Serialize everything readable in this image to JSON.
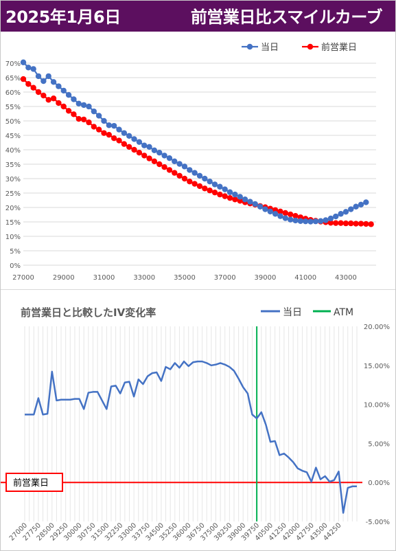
{
  "header": {
    "date": "2025年1月6日",
    "title": "前営業日比スマイルカーブ",
    "background": "#5c0f5f"
  },
  "chart_data": [
    {
      "type": "line",
      "title": "",
      "x_ticks": [
        "27000",
        "29000",
        "31000",
        "33000",
        "35000",
        "37000",
        "39000",
        "41000",
        "43000"
      ],
      "y_ticks": [
        "0%",
        "5%",
        "10%",
        "15%",
        "20%",
        "25%",
        "30%",
        "35%",
        "40%",
        "45%",
        "50%",
        "55%",
        "60%",
        "65%",
        "70%"
      ],
      "xlim": [
        27000,
        44500
      ],
      "ylim": [
        0,
        70
      ],
      "grid": true,
      "legend_position": "top-right",
      "series": [
        {
          "name": "当日",
          "color": "#4472c4",
          "x": [
            27000,
            27250,
            27500,
            27750,
            28000,
            28250,
            28500,
            28750,
            29000,
            29250,
            29500,
            29750,
            30000,
            30250,
            30500,
            30750,
            31000,
            31250,
            31500,
            31750,
            32000,
            32250,
            32500,
            32750,
            33000,
            33250,
            33500,
            33750,
            34000,
            34250,
            34500,
            34750,
            35000,
            35250,
            35500,
            35750,
            36000,
            36250,
            36500,
            36750,
            37000,
            37250,
            37500,
            37750,
            38000,
            38250,
            38500,
            38750,
            39000,
            39250,
            39500,
            39750,
            40000,
            40250,
            40500,
            40750,
            41000,
            41250,
            41500,
            41750,
            42000,
            42250,
            42500,
            42750,
            43000,
            43250,
            43500,
            43750,
            44000
          ],
          "values": [
            70.3,
            68.5,
            68.0,
            65.5,
            63.8,
            65.5,
            63.5,
            62.0,
            60.5,
            59.0,
            57.5,
            56.0,
            55.5,
            55.0,
            53.3,
            51.8,
            50.0,
            48.5,
            48.3,
            47.0,
            45.8,
            44.8,
            43.7,
            42.7,
            41.5,
            41.0,
            39.8,
            39.0,
            38.0,
            37.1,
            36.0,
            35.1,
            34.2,
            33.0,
            32.0,
            31.0,
            30.0,
            29.0,
            28.0,
            27.2,
            26.3,
            25.3,
            24.5,
            23.7,
            22.8,
            22.0,
            21.2,
            20.3,
            19.4,
            18.6,
            17.8,
            17.0,
            16.3,
            15.8,
            15.5,
            15.3,
            15.2,
            15.1,
            15.2,
            15.3,
            15.6,
            16.2,
            16.9,
            17.8,
            18.5,
            19.4,
            20.3,
            21.0,
            21.8
          ]
        },
        {
          "name": "前営業日",
          "color": "#ff0000",
          "x": [
            27000,
            27250,
            27500,
            27750,
            28000,
            28250,
            28500,
            28750,
            29000,
            29250,
            29500,
            29750,
            30000,
            30250,
            30500,
            30750,
            31000,
            31250,
            31500,
            31750,
            32000,
            32250,
            32500,
            32750,
            33000,
            33250,
            33500,
            33750,
            34000,
            34250,
            34500,
            34750,
            35000,
            35250,
            35500,
            35750,
            36000,
            36250,
            36500,
            36750,
            37000,
            37250,
            37500,
            37750,
            38000,
            38250,
            38500,
            38750,
            39000,
            39250,
            39500,
            39750,
            40000,
            40250,
            40500,
            40750,
            41000,
            41250,
            41500,
            41750,
            42000,
            42250,
            42500,
            42750,
            43000,
            43250,
            43500,
            43750,
            44000,
            44250
          ],
          "values": [
            64.5,
            62.8,
            61.5,
            60.0,
            58.8,
            57.3,
            57.8,
            56.2,
            55.0,
            53.5,
            52.3,
            50.7,
            50.5,
            49.5,
            48.0,
            47.0,
            45.8,
            45.2,
            44.0,
            43.2,
            42.0,
            41.0,
            40.0,
            39.0,
            38.0,
            37.0,
            36.0,
            35.0,
            34.0,
            33.0,
            32.0,
            31.0,
            30.0,
            29.0,
            28.2,
            27.4,
            26.6,
            25.9,
            25.2,
            24.5,
            23.9,
            23.3,
            22.8,
            22.3,
            21.8,
            21.4,
            21.0,
            20.5,
            20.1,
            19.6,
            19.1,
            18.6,
            18.1,
            17.6,
            17.1,
            16.6,
            16.1,
            15.7,
            15.4,
            15.1,
            14.9,
            14.7,
            14.6,
            14.6,
            14.5,
            14.5,
            14.4,
            14.4,
            14.3,
            14.2
          ]
        }
      ]
    },
    {
      "type": "line",
      "title": "前営業日と比較したIV変化率",
      "x_ticks": [
        "27000",
        "27750",
        "28500",
        "29250",
        "30000",
        "30750",
        "31500",
        "32250",
        "33000",
        "33750",
        "34500",
        "35250",
        "36000",
        "36750",
        "37500",
        "38250",
        "39000",
        "39750",
        "40500",
        "41250",
        "42000",
        "42750",
        "43500",
        "44250"
      ],
      "y_ticks": [
        "-5.00%",
        "0.00%",
        "5.00%",
        "10.00%",
        "15.00%",
        "20.00%"
      ],
      "ylim": [
        -5,
        20
      ],
      "grid": true,
      "legend_position": "top-right",
      "atm_strike": 39750,
      "baseline_label": "前営業日",
      "baseline_color": "#ff0000",
      "atm_color": "#00b050",
      "series": [
        {
          "name": "当日",
          "color": "#4472c4",
          "strike_start": 27000,
          "strike_step": 250,
          "values": [
            8.7,
            8.7,
            8.7,
            10.8,
            8.7,
            8.8,
            14.2,
            10.5,
            10.6,
            10.6,
            10.6,
            10.7,
            10.7,
            9.4,
            11.5,
            11.6,
            11.6,
            10.5,
            9.4,
            12.3,
            12.4,
            11.4,
            12.8,
            12.9,
            11.0,
            13.2,
            12.6,
            13.6,
            14.0,
            14.1,
            13.0,
            14.8,
            14.5,
            15.3,
            14.7,
            15.5,
            14.9,
            15.4,
            15.5,
            15.5,
            15.3,
            15.0,
            15.1,
            15.3,
            15.1,
            14.8,
            14.3,
            13.3,
            12.2,
            11.4,
            8.7,
            8.2,
            9.0,
            7.4,
            5.2,
            5.3,
            3.5,
            3.7,
            3.2,
            2.6,
            1.8,
            1.5,
            1.3,
            0.1,
            1.9,
            0.4,
            0.8,
            0.1,
            0.3,
            1.4,
            -3.9,
            -0.7,
            -0.5,
            -0.5
          ]
        },
        {
          "name": "ATM",
          "color": "#00b050"
        }
      ]
    }
  ]
}
